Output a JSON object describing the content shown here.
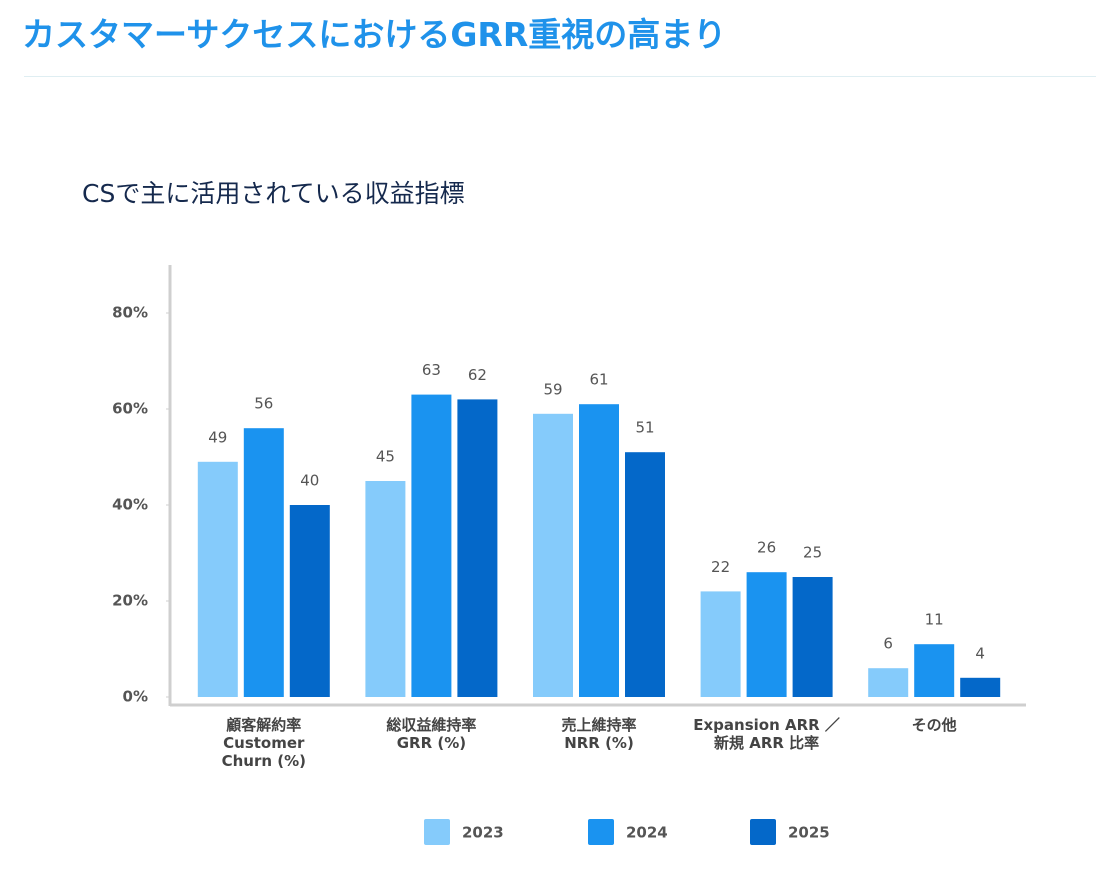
{
  "header": {
    "title": "カスタマーサクセスにおけるGRR重視の高まり"
  },
  "chart_data": {
    "type": "bar",
    "title": "CSで主に活用されている収益指標",
    "categories": [
      "顧客解約率\nCustomer\nChurn (%)",
      "総収益維持率\nGRR (%)",
      "売上維持率\nNRR (%)",
      "Expansion ARR ／\n新規 ARR 比率",
      "その他"
    ],
    "series": [
      {
        "name": "2023",
        "color": "#85cbfb",
        "values": [
          49,
          45,
          59,
          22,
          6
        ]
      },
      {
        "name": "2024",
        "color": "#1a93f0",
        "values": [
          56,
          63,
          61,
          26,
          11
        ]
      },
      {
        "name": "2025",
        "color": "#0468c9",
        "values": [
          40,
          62,
          51,
          25,
          4
        ]
      }
    ],
    "ylim": [
      0,
      90
    ],
    "yticks": [
      {
        "value": 0,
        "label": "0%"
      },
      {
        "value": 20,
        "label": "20%"
      },
      {
        "value": 40,
        "label": "40%"
      },
      {
        "value": 60,
        "label": "60%"
      },
      {
        "value": 80,
        "label": "80%"
      }
    ],
    "grid": false,
    "legend": "bottom"
  }
}
